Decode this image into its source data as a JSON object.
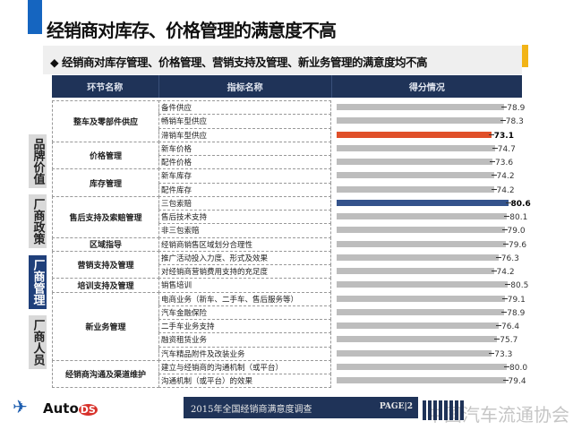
{
  "title": "经销商对库存、价格管理的满意度不高",
  "subtitle": "◆ 经销商对库存管理、价格管理、营销支持及管理、新业务管理的满意度均不高",
  "header": {
    "col1": "环节名称",
    "col2": "指标名称",
    "col3": "得分情况"
  },
  "side_labels": [
    {
      "text": "品牌价值",
      "color": "#d9d9d9",
      "text_color": "#222"
    },
    {
      "text": "厂商政策",
      "color": "#d9d9d9",
      "text_color": "#222"
    },
    {
      "text": "厂商管理",
      "color": "#1f3f7a",
      "text_color": "#ffffff"
    },
    {
      "text": "厂商人员",
      "color": "#d9d9d9",
      "text_color": "#222"
    }
  ],
  "sections": [
    {
      "name": "整车及零部件供应",
      "rows": 3
    },
    {
      "name": "价格管理",
      "rows": 2
    },
    {
      "name": "库存管理",
      "rows": 2
    },
    {
      "name": "售后支持及索赔管理",
      "rows": 3
    },
    {
      "name": "区域指导",
      "rows": 1
    },
    {
      "name": "营销支持及管理",
      "rows": 2
    },
    {
      "name": "培训支持及管理",
      "rows": 1
    },
    {
      "name": "新业务管理",
      "rows": 5
    },
    {
      "name": "经销商沟通及渠道维护",
      "rows": 2
    }
  ],
  "chart_data": {
    "type": "bar",
    "orientation": "horizontal",
    "categories": [
      "备件供应",
      "畅销车型供应",
      "滞销车型供应",
      "新车价格",
      "配件价格",
      "新车库存",
      "配件库存",
      "三包索赔",
      "售后技术支持",
      "非三包索赔",
      "经销商销售区域划分合理性",
      "推广活动投入力度、形式及效果",
      "对经销商营销费用支持的充足度",
      "销售培训",
      "电商业务（新车、二手车、售后服务等）",
      "汽车金融保险",
      "二手车业务支持",
      "融资租赁业务",
      "汽车精品附件及改装业务",
      "建立与经销商的沟通机制（或平台）",
      "沟通机制（或平台）的效果"
    ],
    "values": [
      78.9,
      78.3,
      73.1,
      74.7,
      73.6,
      74.2,
      74.2,
      80.6,
      80.1,
      79.0,
      79.6,
      76.3,
      74.2,
      80.5,
      79.1,
      78.9,
      76.4,
      75.7,
      73.3,
      80.0,
      79.4
    ],
    "labels": [
      "78.9",
      "78.3",
      "73.1",
      "74.7",
      "73.6",
      "74.2",
      "74.2",
      "80.6",
      "80.1",
      "79.0",
      "79.6",
      "76.3",
      "74.2",
      "80.5",
      "79.1",
      "78.9",
      "76.4",
      "75.7",
      "73.3",
      "80.0",
      "79.4"
    ],
    "highlight": {
      "lowest": 2,
      "highest": 7
    },
    "colors": {
      "default": "#bdbdbd",
      "lowest": "#e0502a",
      "highest": "#34538c"
    },
    "grid": false
  },
  "footer": {
    "survey": "2015年全国经销商满意度调查",
    "page": "PAGE|2",
    "logo_text": "Auto",
    "logo_badge": "DS",
    "watermark": "中国汽车流通协会"
  }
}
